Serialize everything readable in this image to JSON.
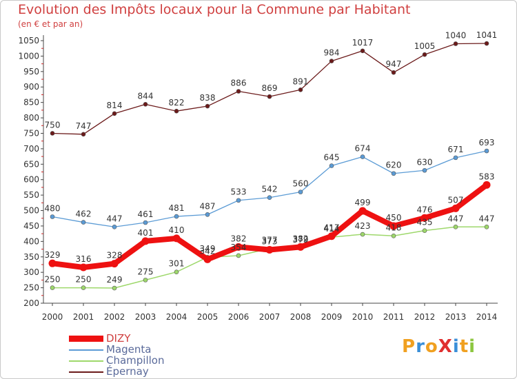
{
  "title": "Evolution des Impôts locaux pour la Commune par Habitant",
  "subtitle": "(en € et par an)",
  "brand": {
    "text": "ProXiti",
    "letters": [
      {
        "ch": "P",
        "color": "#f0a020"
      },
      {
        "ch": "r",
        "color": "#3a8fd8"
      },
      {
        "ch": "o",
        "color": "#f0a020"
      },
      {
        "ch": "X",
        "color": "#e03030"
      },
      {
        "ch": "i",
        "color": "#3a8fd8"
      },
      {
        "ch": "t",
        "color": "#f0a020"
      },
      {
        "ch": "i",
        "color": "#8cc63f"
      }
    ]
  },
  "chart_data": {
    "type": "line",
    "title": "Evolution des Impôts locaux pour la Commune par Habitant",
    "subtitle": "(en € et par an)",
    "x": [
      "2000",
      "2001",
      "2002",
      "2003",
      "2004",
      "2005",
      "2006",
      "2007",
      "2008",
      "2009",
      "2010",
      "2011",
      "2012",
      "2013",
      "2014"
    ],
    "yticks": [
      200,
      250,
      300,
      350,
      400,
      450,
      500,
      550,
      600,
      650,
      700,
      750,
      800,
      850,
      900,
      950,
      1000,
      1050
    ],
    "ylim": [
      200,
      1050
    ],
    "grid": false,
    "legend": "bottom-left",
    "series": [
      {
        "name": "Épernay",
        "color": "#6b1a1a",
        "values": [
          750,
          747,
          814,
          844,
          822,
          838,
          886,
          869,
          891,
          984,
          1017,
          947,
          1005,
          1040,
          1041
        ]
      },
      {
        "name": "Magenta",
        "color": "#5b9bd5",
        "values": [
          480,
          462,
          447,
          461,
          481,
          487,
          533,
          542,
          560,
          645,
          674,
          620,
          630,
          671,
          693
        ]
      },
      {
        "name": "Champillon",
        "color": "#9ed86b",
        "values": [
          250,
          250,
          249,
          275,
          301,
          349,
          354,
          377,
          379,
          414,
          423,
          418,
          435,
          447,
          447
        ]
      },
      {
        "name": "DIZY",
        "color": "#ee1111",
        "values": [
          329,
          316,
          328,
          401,
          410,
          342,
          382,
          373,
          382,
          417,
          499,
          450,
          476,
          507,
          583
        ]
      }
    ]
  }
}
